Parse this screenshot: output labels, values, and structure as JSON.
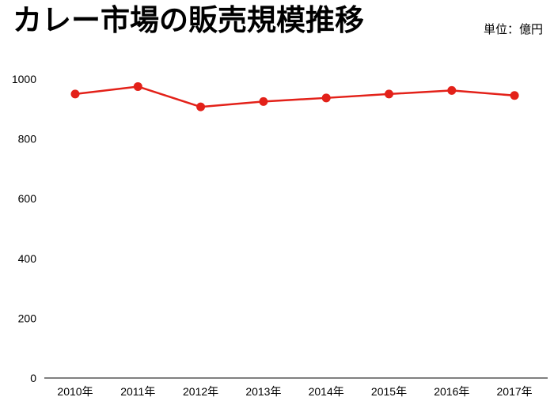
{
  "chart_data": {
    "type": "line",
    "title": "カレー市場の販売規模推移",
    "unit_label": "単位：億円",
    "categories": [
      "2010年",
      "2011年",
      "2012年",
      "2013年",
      "2014年",
      "2015年",
      "2016年",
      "2017年"
    ],
    "values": [
      950,
      975,
      907,
      925,
      937,
      950,
      962,
      945
    ],
    "xlabel": "",
    "ylabel": "",
    "ylim": [
      0,
      1000
    ],
    "yticks": [
      0,
      200,
      400,
      600,
      800,
      1000
    ],
    "grid": false,
    "legend": "none",
    "line_color": "#e32119",
    "marker_color": "#e32119",
    "axis_color": "#000000"
  }
}
